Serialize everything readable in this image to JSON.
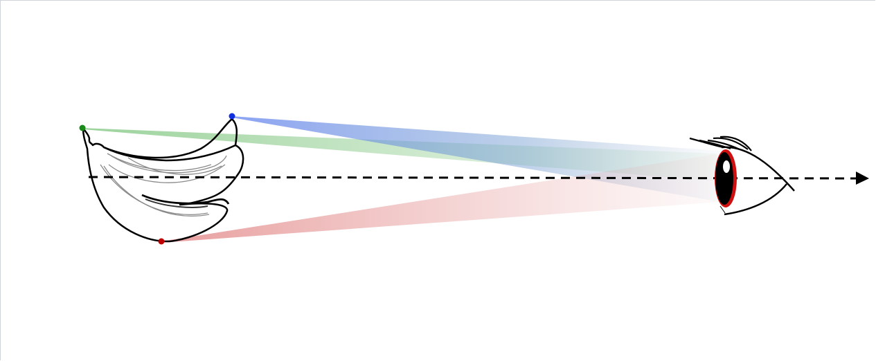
{
  "diagram": {
    "object": "banana-bunch",
    "observer": "eye",
    "optical_axis": "dashed-arrow",
    "points": [
      {
        "name": "green-point",
        "color": "#1a8a1a"
      },
      {
        "name": "blue-point",
        "color": "#1030e0"
      },
      {
        "name": "red-point",
        "color": "#c00000"
      }
    ],
    "beam_colors": {
      "green": "#7cc47c",
      "blue": "#7f99f0",
      "red": "#e89090"
    },
    "iris_color": "#d01010"
  }
}
